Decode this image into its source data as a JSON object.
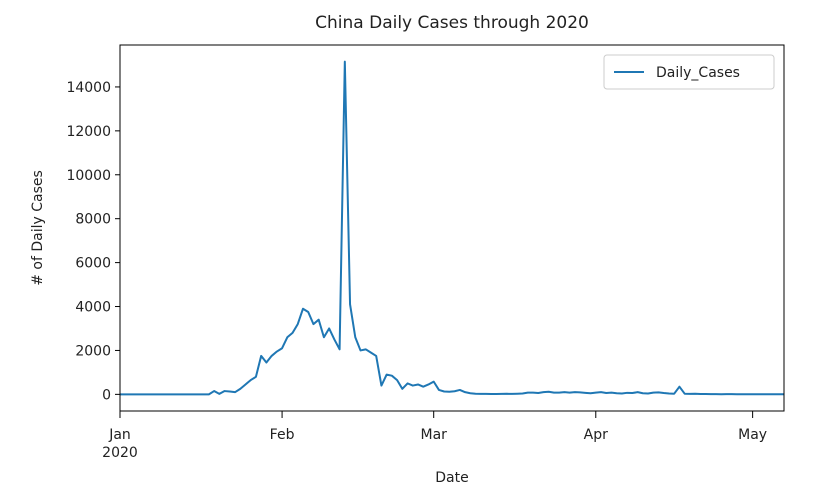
{
  "chart_data": {
    "type": "line",
    "title": "China Daily Cases through 2020",
    "x_label": "Date",
    "y_label": "# of Daily Cases",
    "x_year_label": "2020",
    "x": [
      0,
      1,
      2,
      3,
      4,
      5,
      6,
      7,
      8,
      9,
      10,
      11,
      12,
      13,
      14,
      15,
      16,
      17,
      18,
      19,
      20,
      21,
      22,
      23,
      24,
      25,
      26,
      27,
      28,
      29,
      30,
      31,
      32,
      33,
      34,
      35,
      36,
      37,
      38,
      39,
      40,
      41,
      42,
      43,
      44,
      45,
      46,
      47,
      48,
      49,
      50,
      51,
      52,
      53,
      54,
      55,
      56,
      57,
      58,
      59,
      60,
      61,
      62,
      63,
      64,
      65,
      66,
      67,
      68,
      69,
      70,
      71,
      72,
      73,
      74,
      75,
      76,
      77,
      78,
      79,
      80,
      81,
      82,
      83,
      84,
      85,
      86,
      87,
      88,
      89,
      90,
      91,
      92,
      93,
      94,
      95,
      96,
      97,
      98,
      99,
      100,
      101,
      102,
      103,
      104,
      105,
      106,
      107,
      108,
      109,
      110,
      111,
      112,
      113,
      114,
      115,
      116,
      117,
      118,
      119,
      120,
      121,
      122,
      123,
      124,
      125,
      126,
      127
    ],
    "series": [
      {
        "name": "Daily_Cases",
        "color": "#1f77b4",
        "values": [
          0,
          0,
          0,
          0,
          0,
          0,
          0,
          0,
          0,
          0,
          0,
          0,
          0,
          0,
          0,
          0,
          0,
          0,
          150,
          20,
          150,
          130,
          100,
          250,
          450,
          650,
          800,
          1750,
          1450,
          1750,
          1950,
          2100,
          2600,
          2800,
          3200,
          3900,
          3750,
          3200,
          3400,
          2600,
          3000,
          2500,
          2050,
          15152,
          4100,
          2600,
          2000,
          2050,
          1900,
          1750,
          400,
          900,
          850,
          650,
          250,
          500,
          400,
          450,
          350,
          450,
          580,
          200,
          130,
          120,
          140,
          200,
          100,
          50,
          30,
          20,
          20,
          15,
          15,
          20,
          25,
          20,
          30,
          40,
          80,
          80,
          60,
          100,
          120,
          80,
          80,
          100,
          80,
          100,
          90,
          70,
          50,
          80,
          100,
          60,
          80,
          50,
          40,
          70,
          60,
          100,
          50,
          40,
          80,
          90,
          60,
          40,
          30,
          350,
          30,
          20,
          30,
          15,
          15,
          10,
          10,
          5,
          10,
          10,
          5,
          5,
          5,
          5,
          5,
          5,
          5,
          5,
          5,
          5
        ]
      }
    ],
    "xlim": [
      0,
      127
    ],
    "xticks": [
      {
        "value": 0,
        "label": "Jan"
      },
      {
        "value": 31,
        "label": "Feb"
      },
      {
        "value": 60,
        "label": "Mar"
      },
      {
        "value": 91,
        "label": "Apr"
      },
      {
        "value": 121,
        "label": "May"
      }
    ],
    "ylim": [
      -758,
      15910
    ],
    "yticks": [
      0,
      2000,
      4000,
      6000,
      8000,
      10000,
      12000,
      14000
    ],
    "grid": false,
    "legend": "upper-right"
  }
}
